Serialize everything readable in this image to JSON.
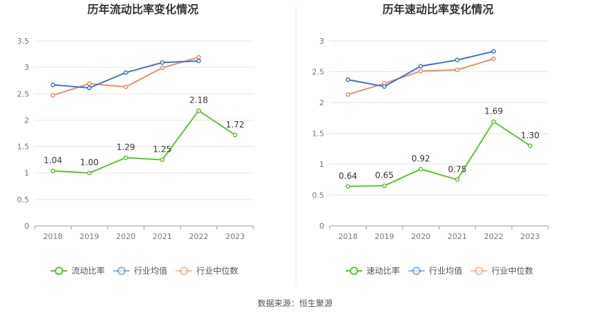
{
  "source_label": "数据来源：恒生聚源",
  "chart_data": [
    {
      "type": "line",
      "title": "历年流动比率变化情况",
      "categories": [
        "2018",
        "2019",
        "2020",
        "2021",
        "2022",
        "2023"
      ],
      "yticks": [
        "0",
        "0.5",
        "1",
        "1.5",
        "2",
        "2.5",
        "3",
        "3.5"
      ],
      "ylim": [
        0,
        3.5
      ],
      "grid": true,
      "legend_position": "bottom",
      "series": [
        {
          "name": "流动比率",
          "color": "#5cc42e",
          "values": [
            1.04,
            1.0,
            1.29,
            1.25,
            2.18,
            1.72
          ],
          "labels": [
            "1.04",
            "1.00",
            "1.29",
            "1.25",
            "2.18",
            "1.72"
          ]
        },
        {
          "name": "行业均值",
          "color": "#3a74d6",
          "values": [
            2.67,
            2.61,
            2.9,
            3.09,
            3.12,
            null
          ]
        },
        {
          "name": "行业中位数",
          "color": "#f08a5d",
          "values": [
            2.47,
            2.69,
            2.63,
            2.99,
            3.19,
            null
          ]
        }
      ]
    },
    {
      "type": "line",
      "title": "历年速动比率变化情况",
      "categories": [
        "2018",
        "2019",
        "2020",
        "2021",
        "2022",
        "2023"
      ],
      "yticks": [
        "0",
        "0.5",
        "1",
        "1.5",
        "2",
        "2.5",
        "3"
      ],
      "ylim": [
        0,
        3
      ],
      "grid": true,
      "legend_position": "bottom",
      "series": [
        {
          "name": "速动比率",
          "color": "#5cc42e",
          "values": [
            0.64,
            0.65,
            0.92,
            0.75,
            1.69,
            1.3
          ],
          "labels": [
            "0.64",
            "0.65",
            "0.92",
            "0.75",
            "1.69",
            "1.30"
          ]
        },
        {
          "name": "行业均值",
          "color": "#3a74d6",
          "values": [
            2.37,
            2.26,
            2.59,
            2.69,
            2.83,
            null
          ]
        },
        {
          "name": "行业中位数",
          "color": "#f08a5d",
          "values": [
            2.13,
            2.31,
            2.51,
            2.53,
            2.71,
            null
          ]
        }
      ]
    }
  ]
}
